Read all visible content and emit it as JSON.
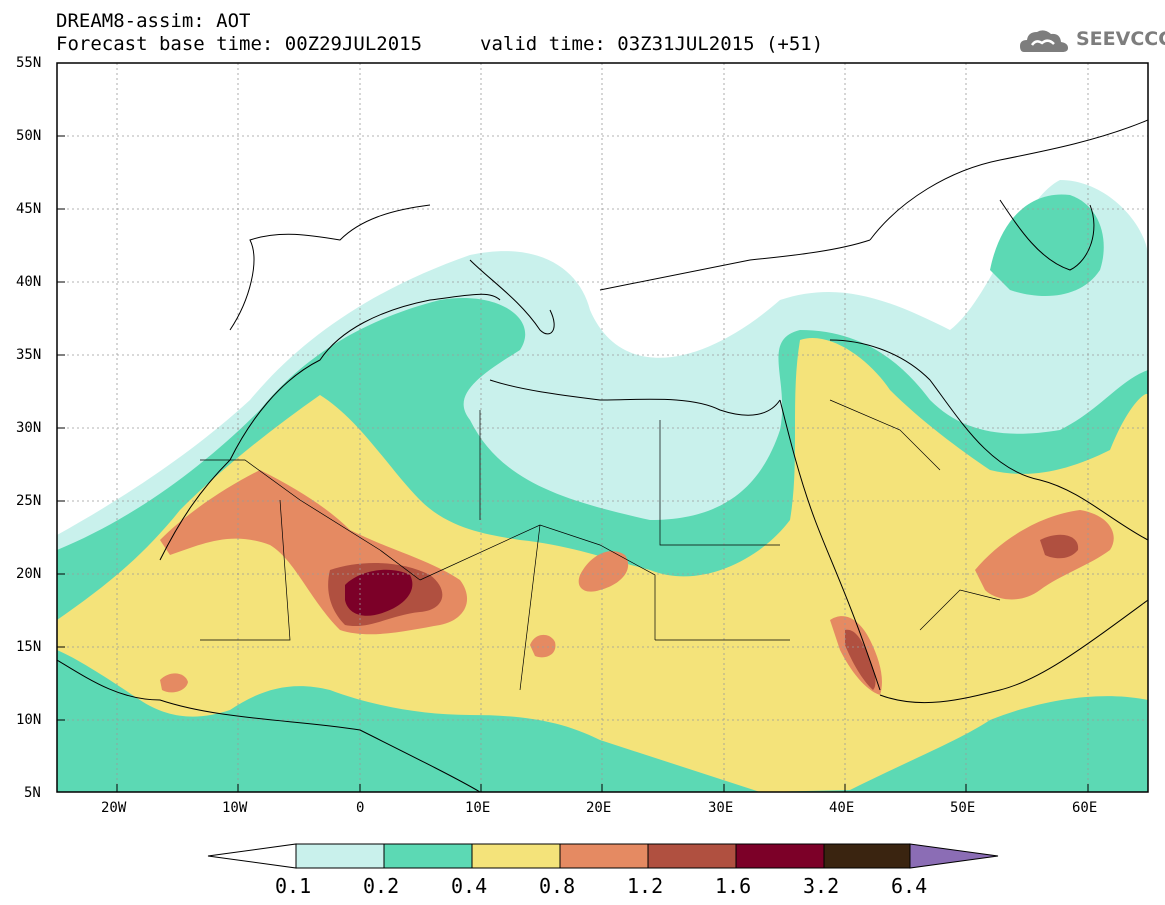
{
  "header": {
    "model_line": "DREAM8-assim: AOT",
    "base_time": "Forecast base time: 00Z29JUL2015",
    "valid_time": "valid time: 03Z31JUL2015 (+51)",
    "logo_text": "SEEVCCC",
    "logo_icon": "cloud-icon"
  },
  "map": {
    "projection": "lat-lon",
    "lon_range": [
      -25,
      65
    ],
    "lat_range": [
      5,
      55
    ],
    "lat_labels": [
      "55N",
      "50N",
      "45N",
      "40N",
      "35N",
      "30N",
      "25N",
      "20N",
      "15N",
      "10N",
      "5N"
    ],
    "lon_labels": [
      "20W",
      "10W",
      "0",
      "10E",
      "20E",
      "30E",
      "40E",
      "50E",
      "60E"
    ],
    "gridlines": true
  },
  "colorbar": {
    "labels": [
      "0.1",
      "0.2",
      "0.4",
      "0.8",
      "1.2",
      "1.6",
      "3.2",
      "6.4"
    ],
    "colors": {
      "under": "#ffffff",
      "c1": "#c9f1ec",
      "c2": "#5cd9b4",
      "c3": "#f4e37a",
      "c4": "#e58a62",
      "c5": "#b05040",
      "c6": "#7c0028",
      "c7": "#3a2410",
      "over": "#8b6db5"
    }
  }
}
